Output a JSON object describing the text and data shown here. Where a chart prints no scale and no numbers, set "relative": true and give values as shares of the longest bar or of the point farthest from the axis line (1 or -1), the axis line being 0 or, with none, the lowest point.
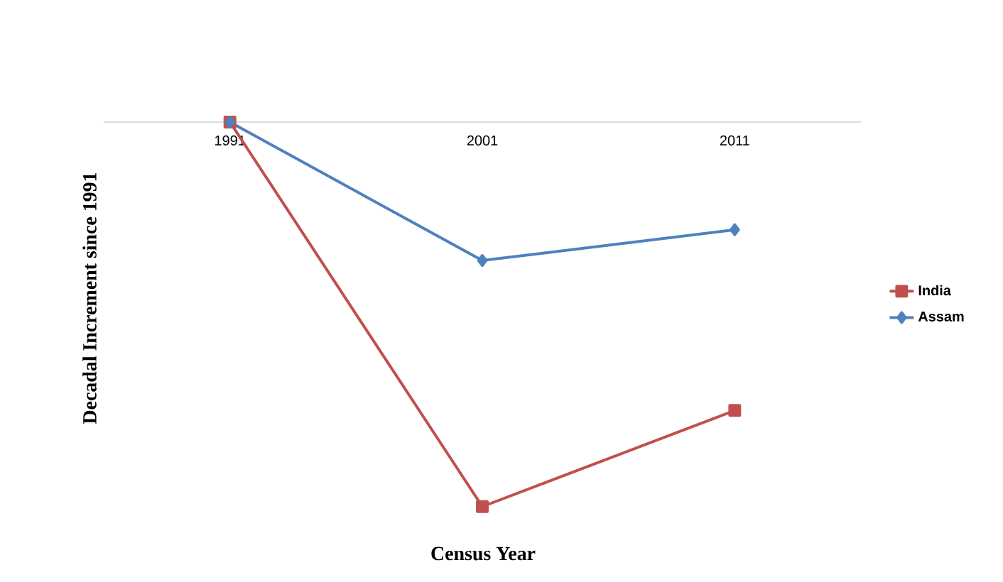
{
  "chart_data": {
    "type": "line",
    "relative": true,
    "xlabel": "Census Year",
    "ylabel": "Decadal Increment since 1991",
    "categories": [
      "1991",
      "2001",
      "2011"
    ],
    "legend": "right",
    "grid": false,
    "series": [
      {
        "name": "India",
        "color": "#c0504d",
        "marker": "square",
        "values": [
          0,
          -1,
          -0.75
        ]
      },
      {
        "name": "Assam",
        "color": "#4f81bd",
        "marker": "diamond",
        "values": [
          0,
          -0.36,
          -0.28
        ]
      }
    ]
  }
}
